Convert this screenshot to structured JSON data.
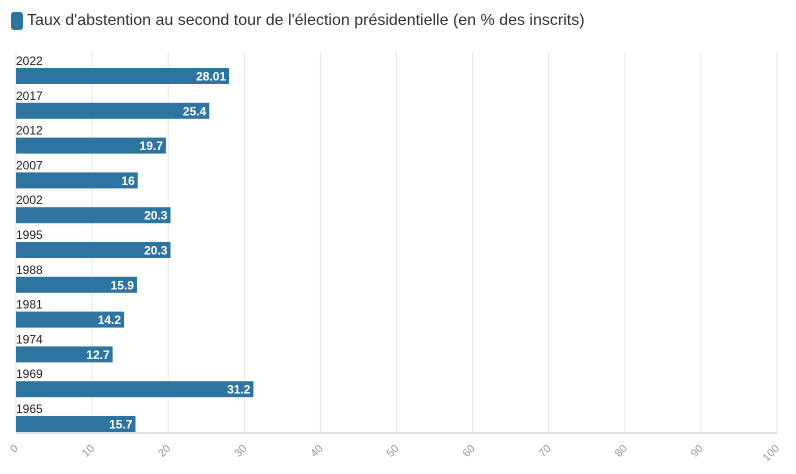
{
  "chart_data": {
    "type": "bar",
    "orientation": "horizontal",
    "categories": [
      "2022",
      "2017",
      "2012",
      "2007",
      "2002",
      "1995",
      "1988",
      "1981",
      "1974",
      "1969",
      "1965"
    ],
    "series": [
      {
        "name": "Taux d'abstention au second tour de l'élection présidentielle (en % des inscrits)",
        "values": [
          28.01,
          25.4,
          19.7,
          16,
          20.3,
          20.3,
          15.9,
          14.2,
          12.7,
          31.2,
          15.7
        ],
        "labels": [
          "28.01",
          "25.4",
          "19.7",
          "16",
          "20.3",
          "20.3",
          "15.9",
          "14.2",
          "12.7",
          "31.2",
          "15.7"
        ]
      }
    ],
    "xlim": [
      0,
      100
    ],
    "xticks": [
      0,
      10,
      20,
      30,
      40,
      50,
      60,
      70,
      80,
      90,
      100
    ],
    "grid": true,
    "legend": "top-left",
    "color": "#2e74a0"
  }
}
